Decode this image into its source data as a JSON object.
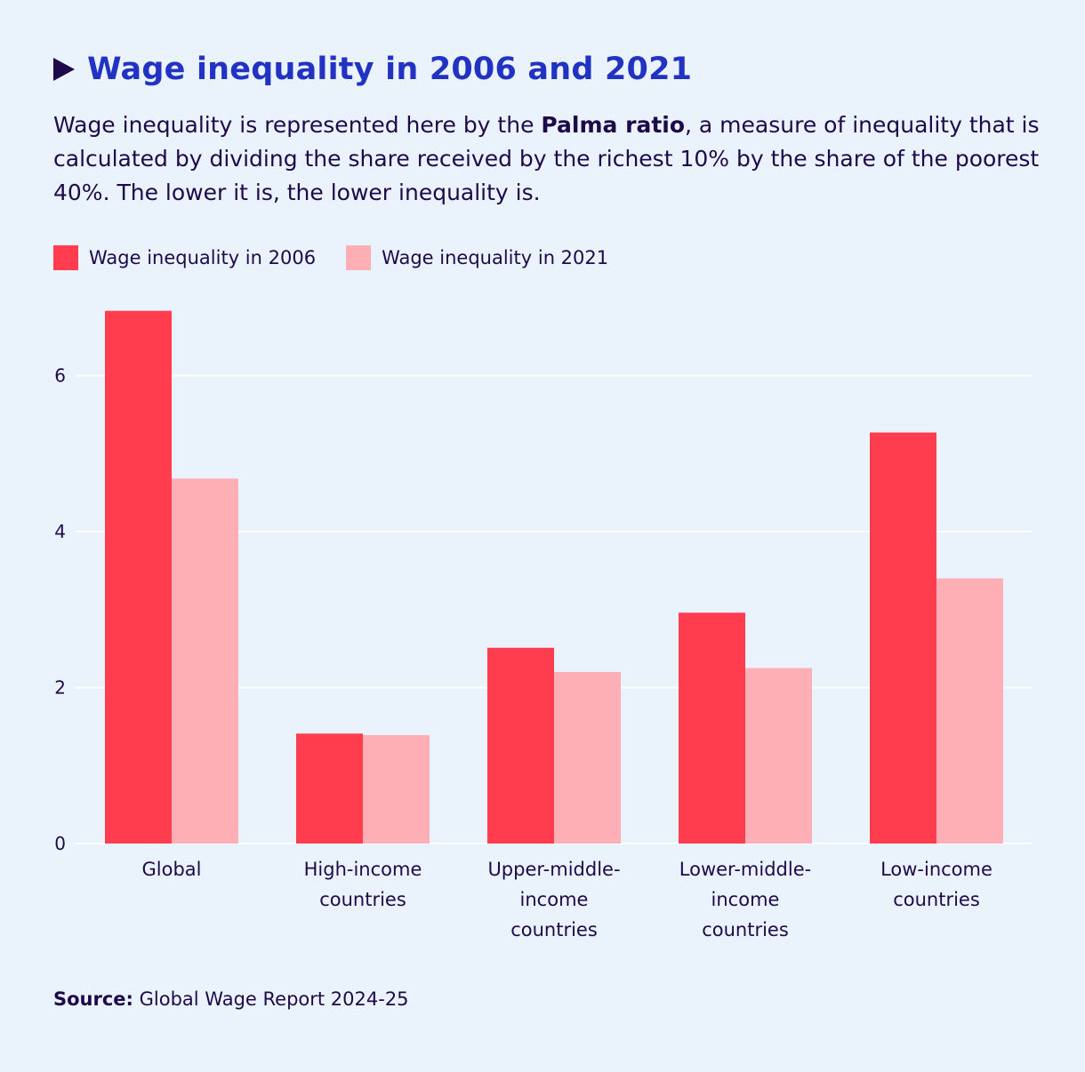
{
  "header": {
    "title": "Wage inequality in 2006 and 2021",
    "subtitle_pre": "Wage inequality is represented here by the ",
    "subtitle_bold": "Palma ratio",
    "subtitle_post": ", a measure of inequality that is calculated by dividing the share received by the richest 10% by the share of the poorest 40%. The lower it is, the lower inequality is."
  },
  "source": {
    "label": "Source:",
    "text": " Global Wage Report 2024-25"
  },
  "colors": {
    "s2006": "#ff3d4f",
    "s2021": "#feafb6",
    "grid": "#ffffff",
    "background": "#eaf3fc"
  },
  "chart_data": {
    "type": "bar",
    "title": "Wage inequality in 2006 and 2021",
    "xlabel": "",
    "ylabel": "",
    "ylim": [
      0,
      7
    ],
    "yticks": [
      0,
      2,
      4,
      6
    ],
    "grid": true,
    "legend_position": "top-left",
    "categories": [
      [
        "Global"
      ],
      [
        "High-income",
        "countries"
      ],
      [
        "Upper-middle-",
        "income",
        "countries"
      ],
      [
        "Lower-middle-",
        "income",
        "countries"
      ],
      [
        "Low-income",
        "countries"
      ]
    ],
    "series": [
      {
        "name": "Wage inequality in 2006",
        "color": "#ff3d4f",
        "values": [
          6.83,
          1.41,
          2.51,
          2.96,
          5.27
        ]
      },
      {
        "name": "Wage inequality in 2021",
        "color": "#feafb6",
        "values": [
          4.68,
          1.39,
          2.2,
          2.25,
          3.4
        ]
      }
    ]
  }
}
